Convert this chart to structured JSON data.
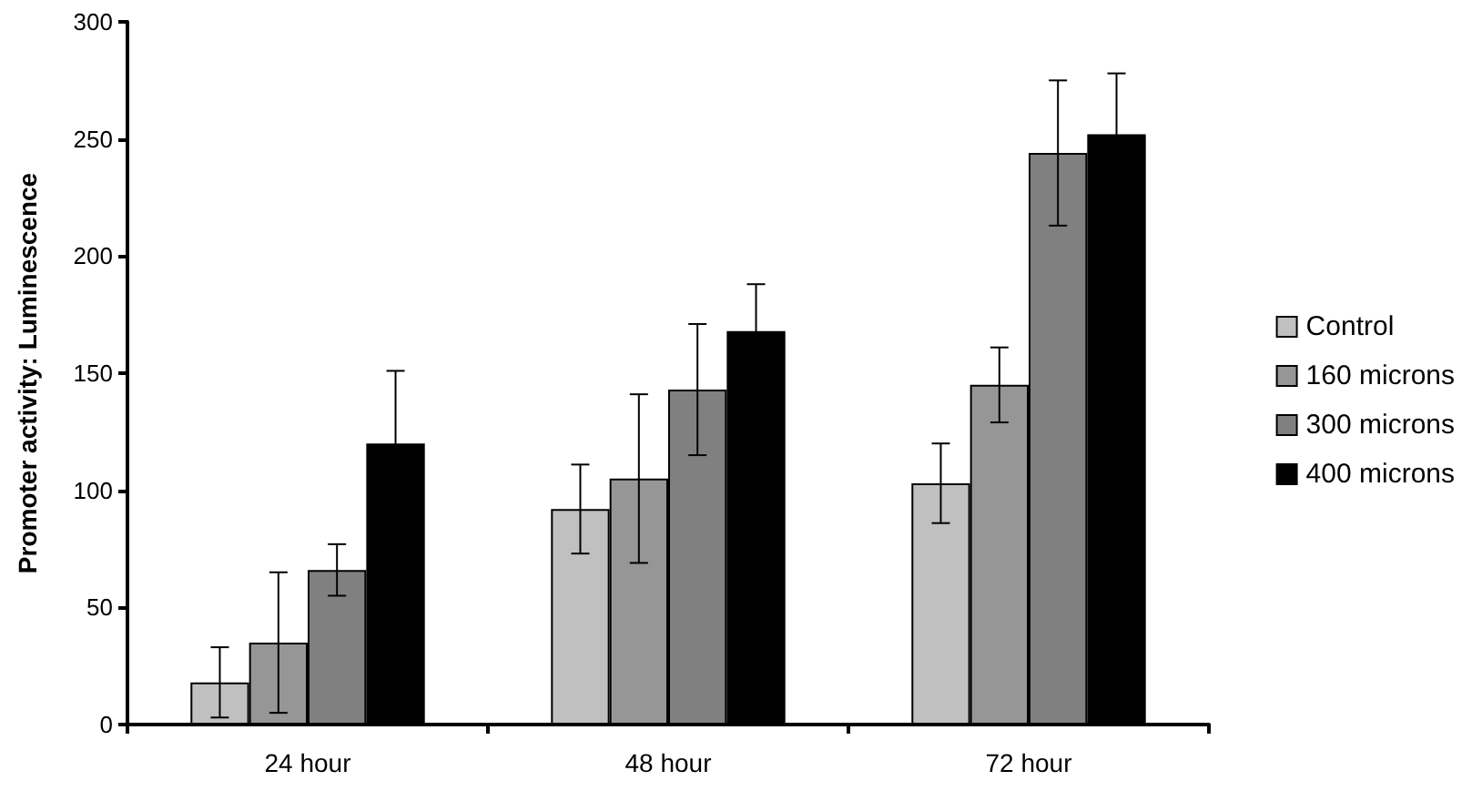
{
  "chart_data": {
    "type": "bar",
    "ylabel": "Promoter activity: Luminescence",
    "categories": [
      "24 hour",
      "48 hour",
      "72 hour"
    ],
    "series": [
      {
        "name": "Control",
        "color": "#c0c0c0",
        "values": [
          18,
          92,
          103
        ],
        "errors": [
          15,
          19,
          17
        ]
      },
      {
        "name": "160 microns",
        "color": "#969696",
        "values": [
          35,
          105,
          145
        ],
        "errors": [
          30,
          36,
          16
        ]
      },
      {
        "name": "300 microns",
        "color": "#808080",
        "values": [
          66,
          143,
          244
        ],
        "errors": [
          11,
          28,
          31
        ]
      },
      {
        "name": "400 microns",
        "color": "#000000",
        "values": [
          120,
          168,
          252
        ],
        "errors": [
          31,
          20,
          26
        ]
      }
    ],
    "ylim": [
      0,
      300
    ],
    "yticks": [
      0,
      50,
      100,
      150,
      200,
      250,
      300
    ],
    "grid": false,
    "legend": "right"
  }
}
